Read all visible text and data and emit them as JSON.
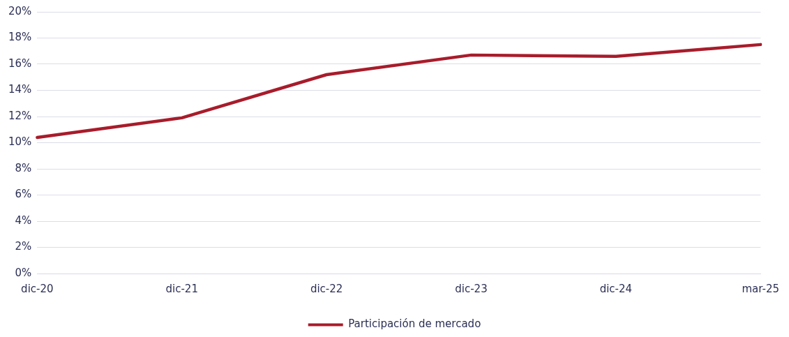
{
  "chart_data": {
    "type": "line",
    "categories": [
      "dic-20",
      "dic-21",
      "dic-22",
      "dic-23",
      "dic-24",
      "mar-25"
    ],
    "series": [
      {
        "name": "Participación de mercado",
        "color": "#a81c2b",
        "values": [
          10.4,
          11.9,
          15.2,
          16.7,
          16.6,
          17.5
        ]
      }
    ],
    "ylim": [
      0,
      20
    ],
    "yticks": [
      {
        "value": 0,
        "label": "0%"
      },
      {
        "value": 2,
        "label": "2%"
      },
      {
        "value": 4,
        "label": "4%"
      },
      {
        "value": 6,
        "label": "6%"
      },
      {
        "value": 8,
        "label": "8%"
      },
      {
        "value": 10,
        "label": "10%"
      },
      {
        "value": 12,
        "label": "12%"
      },
      {
        "value": 14,
        "label": "14%"
      },
      {
        "value": 16,
        "label": "16%"
      },
      {
        "value": 18,
        "label": "18%"
      },
      {
        "value": 20,
        "label": "20%"
      }
    ],
    "grid": "y",
    "legend": "bottom",
    "marker": "none",
    "line_style": "solid"
  }
}
